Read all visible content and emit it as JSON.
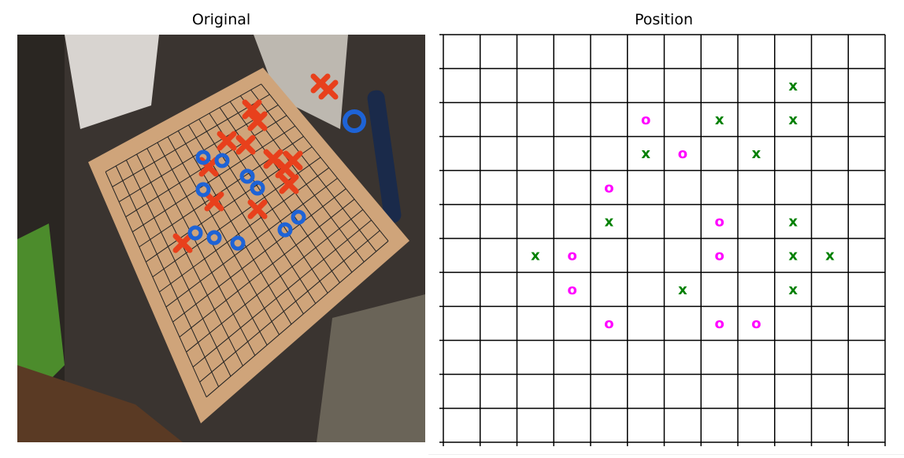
{
  "figure": {
    "left_title": "Original",
    "right_title": "Position"
  },
  "board": {
    "rows": 12,
    "cols": 12,
    "x_color": "#008000",
    "o_color": "#ff00ff",
    "x_symbol": "x",
    "o_symbol": "o",
    "pieces": [
      {
        "row": 1,
        "col": 9,
        "mark": "x"
      },
      {
        "row": 2,
        "col": 5,
        "mark": "o"
      },
      {
        "row": 2,
        "col": 7,
        "mark": "x"
      },
      {
        "row": 2,
        "col": 9,
        "mark": "x"
      },
      {
        "row": 3,
        "col": 5,
        "mark": "x"
      },
      {
        "row": 3,
        "col": 6,
        "mark": "o"
      },
      {
        "row": 3,
        "col": 8,
        "mark": "x"
      },
      {
        "row": 4,
        "col": 4,
        "mark": "o"
      },
      {
        "row": 5,
        "col": 4,
        "mark": "x"
      },
      {
        "row": 5,
        "col": 7,
        "mark": "o"
      },
      {
        "row": 5,
        "col": 9,
        "mark": "x"
      },
      {
        "row": 6,
        "col": 2,
        "mark": "x"
      },
      {
        "row": 6,
        "col": 3,
        "mark": "o"
      },
      {
        "row": 6,
        "col": 7,
        "mark": "o"
      },
      {
        "row": 6,
        "col": 9,
        "mark": "x"
      },
      {
        "row": 6,
        "col": 10,
        "mark": "x"
      },
      {
        "row": 7,
        "col": 3,
        "mark": "o"
      },
      {
        "row": 7,
        "col": 6,
        "mark": "x"
      },
      {
        "row": 7,
        "col": 9,
        "mark": "x"
      },
      {
        "row": 8,
        "col": 4,
        "mark": "o"
      },
      {
        "row": 8,
        "col": 7,
        "mark": "o"
      },
      {
        "row": 8,
        "col": 8,
        "mark": "o"
      }
    ]
  },
  "photo": {
    "red_piece_color": "#e8401c",
    "blue_piece_color": "#1e63d6",
    "board_color": "#cfa47a"
  }
}
